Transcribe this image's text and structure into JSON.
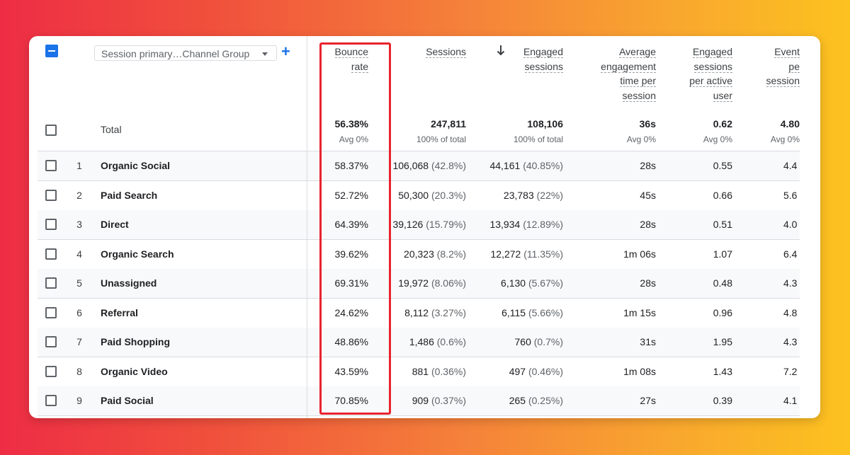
{
  "dimension": {
    "selected": "Session primary…Channel Group"
  },
  "add_dimension_label": "+",
  "columns": [
    {
      "label": [
        "Bounce",
        "rate"
      ]
    },
    {
      "label": [
        "Sessions"
      ]
    },
    {
      "label": [
        "Engaged",
        "sessions"
      ]
    },
    {
      "label": [
        "Average",
        "engagement",
        "time per",
        "session"
      ]
    },
    {
      "label": [
        "Engaged",
        "sessions",
        "per active",
        "user"
      ]
    },
    {
      "label": [
        "Event",
        "pe",
        "session"
      ]
    }
  ],
  "totals": {
    "label": "Total",
    "values": [
      "56.38%",
      "247,811",
      "108,106",
      "36s",
      "0.62",
      "4.80"
    ],
    "subs": [
      "Avg 0%",
      "100% of total",
      "100% of total",
      "Avg 0%",
      "Avg 0%",
      "Avg 0%"
    ]
  },
  "rows": [
    {
      "index": "1",
      "channel": "Organic Social",
      "bounce": "58.37%",
      "sessions": "106,068",
      "sessions_pct": "(42.8%)",
      "engaged": "44,161",
      "engaged_pct": "(40.85%)",
      "avg_time": "28s",
      "per_user": "0.55",
      "events": "4.4"
    },
    {
      "index": "2",
      "channel": "Paid Search",
      "bounce": "52.72%",
      "sessions": "50,300",
      "sessions_pct": "(20.3%)",
      "engaged": "23,783",
      "engaged_pct": "(22%)",
      "avg_time": "45s",
      "per_user": "0.66",
      "events": "5.6"
    },
    {
      "index": "3",
      "channel": "Direct",
      "bounce": "64.39%",
      "sessions": "39,126",
      "sessions_pct": "(15.79%)",
      "engaged": "13,934",
      "engaged_pct": "(12.89%)",
      "avg_time": "28s",
      "per_user": "0.51",
      "events": "4.0"
    },
    {
      "index": "4",
      "channel": "Organic Search",
      "bounce": "39.62%",
      "sessions": "20,323",
      "sessions_pct": "(8.2%)",
      "engaged": "12,272",
      "engaged_pct": "(11.35%)",
      "avg_time": "1m 06s",
      "per_user": "1.07",
      "events": "6.4"
    },
    {
      "index": "5",
      "channel": "Unassigned",
      "bounce": "69.31%",
      "sessions": "19,972",
      "sessions_pct": "(8.06%)",
      "engaged": "6,130",
      "engaged_pct": "(5.67%)",
      "avg_time": "28s",
      "per_user": "0.48",
      "events": "4.3"
    },
    {
      "index": "6",
      "channel": "Referral",
      "bounce": "24.62%",
      "sessions": "8,112",
      "sessions_pct": "(3.27%)",
      "engaged": "6,115",
      "engaged_pct": "(5.66%)",
      "avg_time": "1m 15s",
      "per_user": "0.96",
      "events": "4.8"
    },
    {
      "index": "7",
      "channel": "Paid Shopping",
      "bounce": "48.86%",
      "sessions": "1,486",
      "sessions_pct": "(0.6%)",
      "engaged": "760",
      "engaged_pct": "(0.7%)",
      "avg_time": "31s",
      "per_user": "1.95",
      "events": "4.3"
    },
    {
      "index": "8",
      "channel": "Organic Video",
      "bounce": "43.59%",
      "sessions": "881",
      "sessions_pct": "(0.36%)",
      "engaged": "497",
      "engaged_pct": "(0.46%)",
      "avg_time": "1m 08s",
      "per_user": "1.43",
      "events": "7.2"
    },
    {
      "index": "9",
      "channel": "Paid Social",
      "bounce": "70.85%",
      "sessions": "909",
      "sessions_pct": "(0.37%)",
      "engaged": "265",
      "engaged_pct": "(0.25%)",
      "avg_time": "27s",
      "per_user": "0.39",
      "events": "4.1"
    }
  ],
  "colors": {
    "accent": "#1a73e8",
    "highlight": "#e8232e"
  },
  "icons": {
    "sort": "arrow-down-icon",
    "dropdown": "caret-down-icon",
    "add": "plus-icon"
  }
}
